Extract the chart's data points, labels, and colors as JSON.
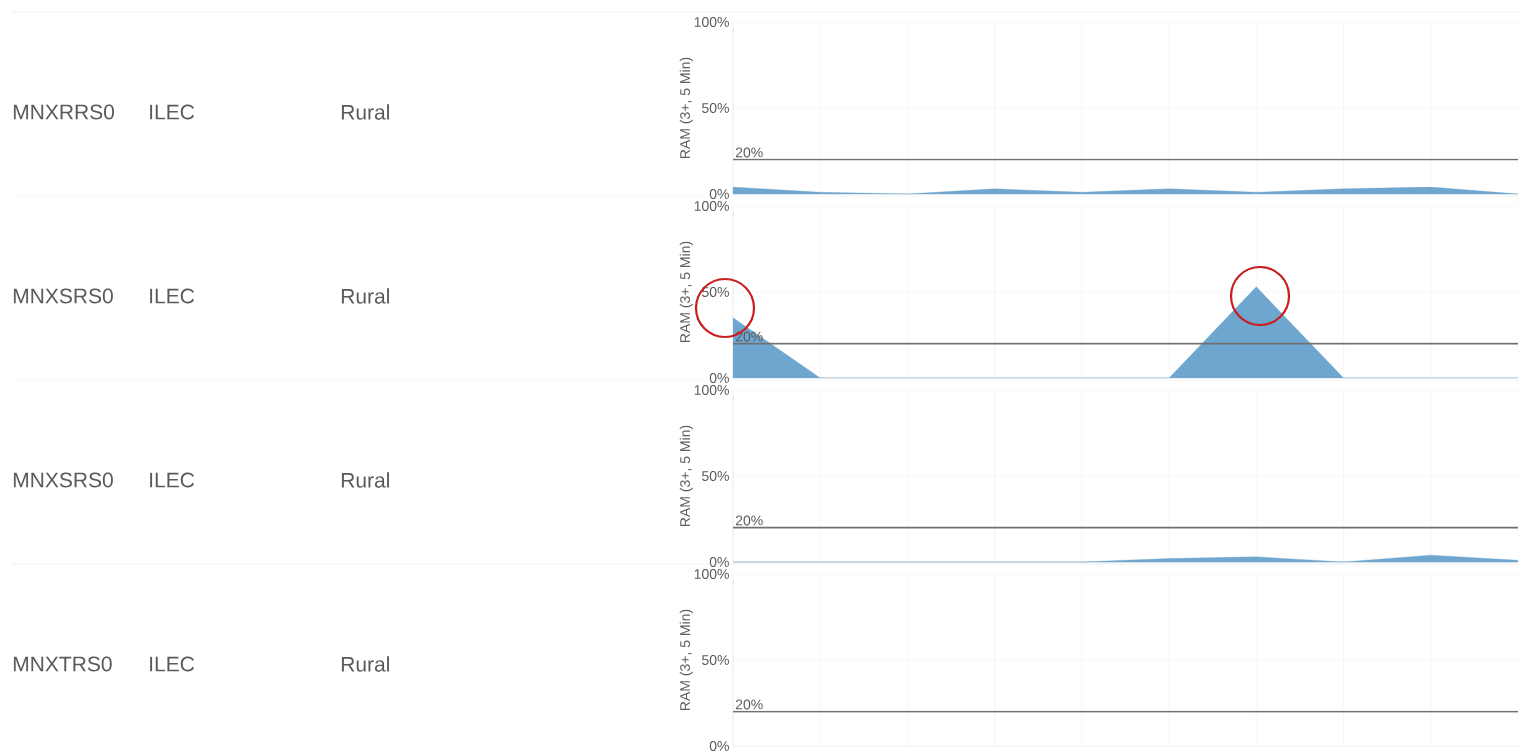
{
  "chart_data": [
    {
      "type": "area",
      "categories": [
        null,
        null,
        null,
        null,
        null,
        null,
        null,
        null,
        null,
        null
      ],
      "values": [
        4,
        1,
        0,
        3,
        1,
        3,
        1,
        3,
        4,
        0
      ],
      "color": "#6ea6cf",
      "ylabel": "RAM (3+, 5 Min)",
      "ylim": [
        0,
        100
      ],
      "yticks": [
        {
          "value": 0,
          "label": "0%"
        },
        {
          "value": 50,
          "label": "50%"
        },
        {
          "value": 100,
          "label": "100%"
        }
      ],
      "grid": true,
      "tick_labels": "y",
      "ref_lines": [
        {
          "axis": "y",
          "value": 20,
          "label": "20%",
          "color": "#707070"
        }
      ],
      "annotations": [
        "MNXRRS0",
        "ILEC",
        "Rural"
      ]
    },
    {
      "type": "area",
      "categories": [
        null,
        null,
        null,
        null,
        null,
        null,
        null,
        null,
        null,
        null
      ],
      "values": [
        35,
        0,
        0,
        0,
        0,
        0,
        53,
        0,
        0,
        0
      ],
      "color": "#6ea6cf",
      "ylabel": "RAM (3+, 5 Min)",
      "ylim": [
        0,
        100
      ],
      "yticks": [
        {
          "value": 0,
          "label": "0%"
        },
        {
          "value": 50,
          "label": "50%"
        },
        {
          "value": 100,
          "label": "100%"
        }
      ],
      "grid": true,
      "tick_labels": "y",
      "ref_lines": [
        {
          "axis": "y",
          "value": 20,
          "label": "20%",
          "color": "#707070"
        }
      ],
      "annotations": [
        "MNXSRS0",
        "ILEC",
        "Rural"
      ]
    },
    {
      "type": "area",
      "categories": [
        null,
        null,
        null,
        null,
        null,
        null,
        null,
        null,
        null,
        null
      ],
      "values": [
        0,
        0,
        0,
        0,
        0,
        2,
        3,
        0,
        4,
        1
      ],
      "color": "#6ea6cf",
      "ylabel": "RAM (3+, 5 Min)",
      "ylim": [
        0,
        100
      ],
      "yticks": [
        {
          "value": 0,
          "label": "0%"
        },
        {
          "value": 50,
          "label": "50%"
        },
        {
          "value": 100,
          "label": "100%"
        }
      ],
      "grid": true,
      "tick_labels": "y",
      "ref_lines": [
        {
          "axis": "y",
          "value": 20,
          "label": "20%",
          "color": "#707070"
        }
      ],
      "annotations": [
        "MNXSRS0",
        "ILEC",
        "Rural"
      ]
    },
    {
      "type": "area",
      "categories": [
        null,
        null,
        null,
        null,
        null,
        null,
        null,
        null,
        null,
        null
      ],
      "values": [
        null,
        null,
        null,
        null,
        null,
        null,
        null,
        null,
        null,
        null
      ],
      "color": "#6ea6cf",
      "ylabel": "RAM (3+, 5 Min)",
      "ylim": [
        0,
        100
      ],
      "yticks": [
        {
          "value": 0,
          "label": "0%"
        },
        {
          "value": 50,
          "label": "50%"
        },
        {
          "value": 100,
          "label": "100%"
        }
      ],
      "grid": true,
      "tick_labels": "y",
      "ref_lines": [
        {
          "axis": "y",
          "value": 20,
          "label": "20%",
          "color": "#707070"
        }
      ],
      "annotations": [
        "MNXTRS0",
        "ILEC",
        "Rural"
      ]
    }
  ]
}
